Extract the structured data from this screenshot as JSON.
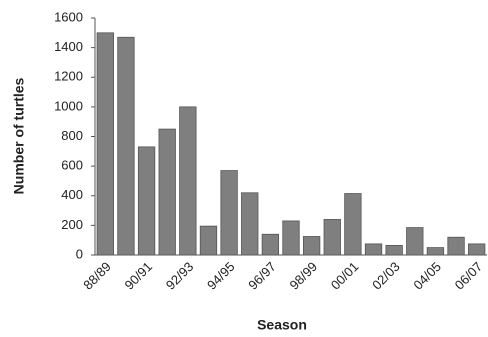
{
  "chart_data": {
    "type": "bar",
    "x_label": "Season",
    "y_label": "Number of turtles",
    "categories": [
      "88/89",
      null,
      "90/91",
      null,
      "92/93",
      null,
      "94/95",
      null,
      "96/97",
      null,
      "98/99",
      null,
      "00/01",
      null,
      "02/03",
      null,
      "04/05",
      null,
      "06/07"
    ],
    "values": [
      1500,
      1470,
      730,
      850,
      1000,
      195,
      570,
      420,
      140,
      230,
      125,
      240,
      415,
      75,
      65,
      185,
      50,
      120,
      75
    ],
    "color": "#7f7f7f",
    "ylim": [
      0,
      1600
    ],
    "yticks": [
      0,
      200,
      400,
      600,
      800,
      1000,
      1200,
      1400,
      1600
    ],
    "grid": false
  }
}
